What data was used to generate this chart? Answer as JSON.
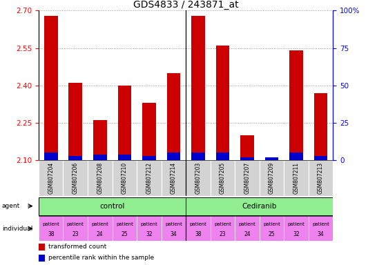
{
  "title": "GDS4833 / 243871_at",
  "samples": [
    "GSM807204",
    "GSM807206",
    "GSM807208",
    "GSM807210",
    "GSM807212",
    "GSM807214",
    "GSM807203",
    "GSM807205",
    "GSM807207",
    "GSM807209",
    "GSM807211",
    "GSM807213"
  ],
  "red_values": [
    2.68,
    2.41,
    2.26,
    2.4,
    2.33,
    2.45,
    2.68,
    2.56,
    2.2,
    2.11,
    2.54,
    2.37
  ],
  "blue_pct": [
    5,
    3,
    4,
    4,
    3,
    5,
    5,
    5,
    2,
    2,
    5,
    3
  ],
  "ymin": 2.1,
  "ymax": 2.7,
  "yticks": [
    2.1,
    2.25,
    2.4,
    2.55,
    2.7
  ],
  "right_yticks": [
    0,
    25,
    50,
    75,
    100
  ],
  "individual_labels": [
    [
      "patient",
      "38"
    ],
    [
      "patient",
      "23"
    ],
    [
      "patient",
      "24"
    ],
    [
      "patient",
      "25"
    ],
    [
      "patient",
      "32"
    ],
    [
      "patient",
      "34"
    ],
    [
      "patient",
      "38"
    ],
    [
      "patient",
      "23"
    ],
    [
      "patient",
      "24"
    ],
    [
      "patient",
      "25"
    ],
    [
      "patient",
      "32"
    ],
    [
      "patient",
      "34"
    ]
  ],
  "individual_color": "#ee82ee",
  "agent_color": "#90ee90",
  "gsm_color": "#d3d3d3",
  "bar_width": 0.55,
  "red_color": "#cc0000",
  "blue_color": "#0000cc",
  "title_fontsize": 10,
  "tick_fontsize": 7.5
}
